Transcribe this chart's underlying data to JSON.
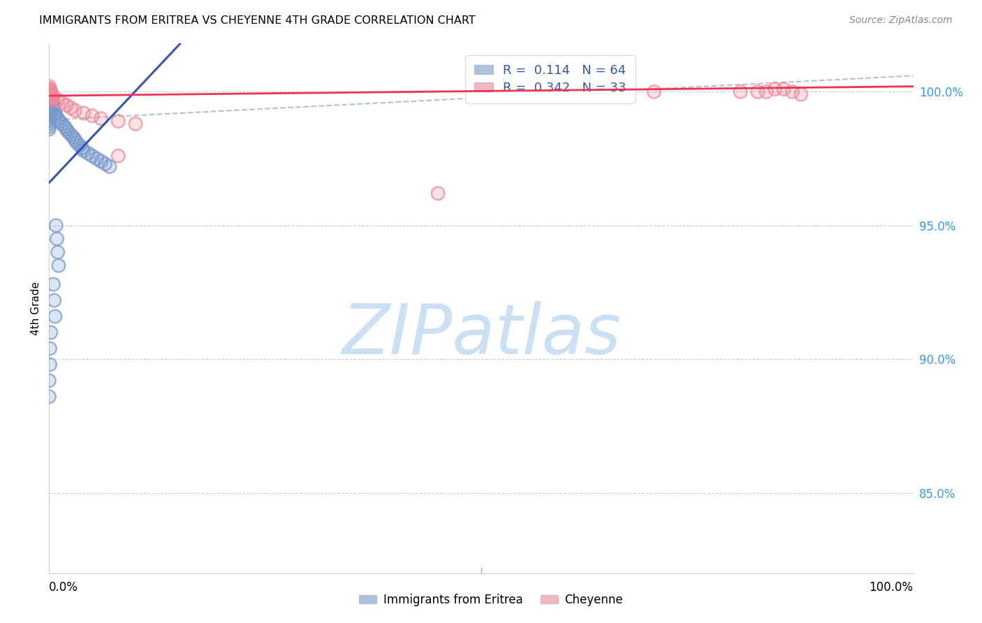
{
  "title": "IMMIGRANTS FROM ERITREA VS CHEYENNE 4TH GRADE CORRELATION CHART",
  "source": "Source: ZipAtlas.com",
  "ylabel": "4th Grade",
  "y_ticks": [
    0.85,
    0.9,
    0.95,
    1.0
  ],
  "y_tick_labels": [
    "85.0%",
    "90.0%",
    "95.0%",
    "100.0%"
  ],
  "xlim": [
    0.0,
    1.0
  ],
  "ylim": [
    0.82,
    1.018
  ],
  "blue_color": "#7799cc",
  "pink_color": "#ee8899",
  "blue_line_color": "#3355bb",
  "pink_line_color": "#ee3355",
  "dash_color": "#aabbcc",
  "R_blue": 0.114,
  "N_blue": 64,
  "R_pink": 0.342,
  "N_pink": 33,
  "legend_label_blue": "Immigrants from Eritrea",
  "legend_label_pink": "Cheyenne",
  "watermark": "ZIPatlas",
  "watermark_color": "#cce0f5",
  "blue_x": [
    0.0,
    0.0,
    0.0,
    0.0,
    0.0,
    0.0,
    0.0,
    0.0,
    0.0,
    0.0,
    0.0,
    0.0,
    0.0,
    0.0,
    0.0,
    0.001,
    0.001,
    0.001,
    0.001,
    0.002,
    0.002,
    0.002,
    0.003,
    0.003,
    0.003,
    0.004,
    0.004,
    0.004,
    0.005,
    0.005,
    0.006,
    0.007,
    0.008,
    0.01,
    0.012,
    0.015,
    0.018,
    0.02,
    0.022,
    0.025,
    0.028,
    0.03,
    0.032,
    0.035,
    0.038,
    0.04,
    0.045,
    0.05,
    0.055,
    0.06,
    0.065,
    0.07,
    0.008,
    0.009,
    0.01,
    0.011,
    0.005,
    0.006,
    0.007,
    0.002,
    0.001,
    0.001,
    0.0,
    0.0
  ],
  "blue_y": [
    1.0,
    0.999,
    0.998,
    0.997,
    0.996,
    0.995,
    0.994,
    0.993,
    0.992,
    0.991,
    0.99,
    0.989,
    0.988,
    0.987,
    0.986,
    0.999,
    0.998,
    0.997,
    0.996,
    0.998,
    0.997,
    0.996,
    0.997,
    0.996,
    0.995,
    0.996,
    0.995,
    0.994,
    0.995,
    0.994,
    0.993,
    0.992,
    0.991,
    0.99,
    0.989,
    0.988,
    0.987,
    0.986,
    0.985,
    0.984,
    0.983,
    0.982,
    0.981,
    0.98,
    0.979,
    0.978,
    0.977,
    0.976,
    0.975,
    0.974,
    0.973,
    0.972,
    0.95,
    0.945,
    0.94,
    0.935,
    0.928,
    0.922,
    0.916,
    0.91,
    0.904,
    0.898,
    0.892,
    0.886
  ],
  "pink_x": [
    0.0,
    0.0,
    0.0,
    0.0,
    0.0,
    0.0,
    0.001,
    0.001,
    0.002,
    0.002,
    0.003,
    0.004,
    0.005,
    0.01,
    0.015,
    0.02,
    0.025,
    0.03,
    0.04,
    0.05,
    0.06,
    0.08,
    0.1,
    0.08,
    0.45,
    0.7,
    0.8,
    0.82,
    0.83,
    0.84,
    0.85,
    0.86,
    0.87
  ],
  "pink_y": [
    1.002,
    1.001,
    1.0,
    0.999,
    0.998,
    0.997,
    1.001,
    1.0,
    1.0,
    0.999,
    0.999,
    0.998,
    0.998,
    0.997,
    0.996,
    0.995,
    0.994,
    0.993,
    0.992,
    0.991,
    0.99,
    0.989,
    0.988,
    0.976,
    0.962,
    1.0,
    1.0,
    1.0,
    1.0,
    1.001,
    1.001,
    1.0,
    0.999
  ],
  "blue_line_x0": 0.0,
  "blue_line_y0": 0.966,
  "blue_line_x1": 0.07,
  "blue_line_y1": 0.99,
  "pink_line_x0": 0.0,
  "pink_line_y0": 0.9985,
  "pink_line_x1": 1.0,
  "pink_line_y1": 1.002,
  "dash_line_x0": 0.0,
  "dash_line_y0": 0.9895,
  "dash_line_x1": 1.0,
  "dash_line_y1": 1.006
}
